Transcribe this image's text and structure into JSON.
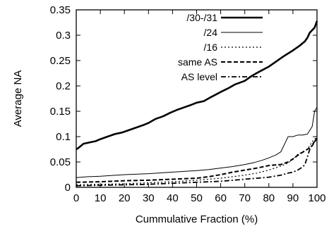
{
  "chart_data": {
    "type": "line",
    "xlabel": "Cummulative Fraction (%)",
    "ylabel": "Average NA",
    "xlim": [
      0,
      100
    ],
    "ylim": [
      0,
      0.35
    ],
    "xticks": [
      0,
      10,
      20,
      30,
      40,
      50,
      60,
      70,
      80,
      90,
      100
    ],
    "yticks": [
      0,
      0.05,
      0.1,
      0.15,
      0.2,
      0.25,
      0.3,
      0.35
    ],
    "xtick_labels": [
      "0",
      "10",
      "20",
      "30",
      "40",
      "50",
      "60",
      "70",
      "80",
      "90",
      "100"
    ],
    "ytick_labels": [
      "0",
      "0.05",
      "0.1",
      "0.15",
      "0.2",
      "0.25",
      "0.3",
      "0.35"
    ],
    "grid": false,
    "legend_position": "top-right",
    "series": [
      {
        "name": "/30-/31",
        "style": "solid-thick",
        "x": [
          0,
          1,
          2,
          3,
          5,
          8,
          10,
          13,
          16,
          19,
          22,
          25,
          28,
          30,
          33,
          36,
          39,
          42,
          45,
          48,
          50,
          53,
          56,
          60,
          63,
          66,
          70,
          73,
          76,
          80,
          83,
          86,
          90,
          93,
          95,
          96,
          97,
          98,
          99,
          100
        ],
        "y": [
          0.075,
          0.078,
          0.082,
          0.086,
          0.088,
          0.091,
          0.095,
          0.1,
          0.105,
          0.108,
          0.113,
          0.118,
          0.123,
          0.127,
          0.135,
          0.14,
          0.147,
          0.153,
          0.158,
          0.163,
          0.167,
          0.17,
          0.178,
          0.188,
          0.195,
          0.203,
          0.21,
          0.22,
          0.228,
          0.238,
          0.248,
          0.258,
          0.27,
          0.28,
          0.288,
          0.295,
          0.305,
          0.31,
          0.315,
          0.328
        ]
      },
      {
        "name": "/24",
        "style": "solid-thin",
        "x": [
          0,
          2,
          5,
          10,
          20,
          30,
          40,
          50,
          55,
          60,
          65,
          70,
          74,
          77,
          80,
          83,
          85,
          87,
          88,
          90,
          92,
          94,
          96,
          98,
          99,
          100
        ],
        "y": [
          0.019,
          0.02,
          0.021,
          0.022,
          0.025,
          0.027,
          0.03,
          0.033,
          0.035,
          0.038,
          0.041,
          0.045,
          0.049,
          0.053,
          0.058,
          0.064,
          0.07,
          0.09,
          0.1,
          0.1,
          0.103,
          0.103,
          0.105,
          0.12,
          0.15,
          0.158
        ]
      },
      {
        "name": "/16",
        "style": "dotted",
        "x": [
          0,
          10,
          20,
          30,
          40,
          50,
          60,
          70,
          75,
          80,
          85,
          88,
          90,
          92,
          94,
          96,
          98,
          100
        ],
        "y": [
          0.005,
          0.006,
          0.007,
          0.009,
          0.011,
          0.014,
          0.018,
          0.024,
          0.028,
          0.034,
          0.042,
          0.048,
          0.055,
          0.065,
          0.07,
          0.075,
          0.09,
          0.1
        ]
      },
      {
        "name": "same AS",
        "style": "dashed",
        "x": [
          0,
          10,
          20,
          30,
          40,
          50,
          55,
          60,
          65,
          70,
          75,
          78,
          80,
          85,
          88,
          90,
          92,
          94,
          96,
          98,
          99,
          100
        ],
        "y": [
          0.01,
          0.011,
          0.013,
          0.014,
          0.016,
          0.018,
          0.021,
          0.025,
          0.03,
          0.034,
          0.038,
          0.041,
          0.043,
          0.045,
          0.05,
          0.056,
          0.063,
          0.069,
          0.075,
          0.082,
          0.09,
          0.097
        ]
      },
      {
        "name": "AS level",
        "style": "dashdot",
        "x": [
          0,
          10,
          20,
          30,
          40,
          50,
          60,
          70,
          80,
          85,
          88,
          90,
          92,
          94,
          95,
          96,
          97,
          98,
          99,
          100
        ],
        "y": [
          0.003,
          0.004,
          0.005,
          0.006,
          0.008,
          0.01,
          0.012,
          0.016,
          0.02,
          0.024,
          0.028,
          0.03,
          0.034,
          0.04,
          0.045,
          0.06,
          0.075,
          0.085,
          0.09,
          0.095
        ]
      }
    ]
  }
}
